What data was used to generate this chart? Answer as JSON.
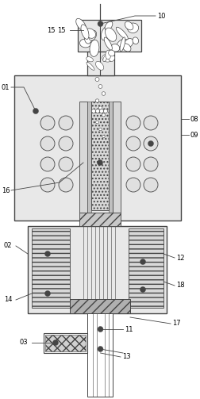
{
  "bg_color": "#ffffff",
  "line_color": "#444444",
  "fill_light": "#e8e8e8",
  "fill_medium": "#cccccc",
  "fill_dark": "#aaaaaa",
  "label_fs": 6.0,
  "lw": 0.7,
  "fig_w": 2.53,
  "fig_h": 5.03,
  "dpi": 100
}
